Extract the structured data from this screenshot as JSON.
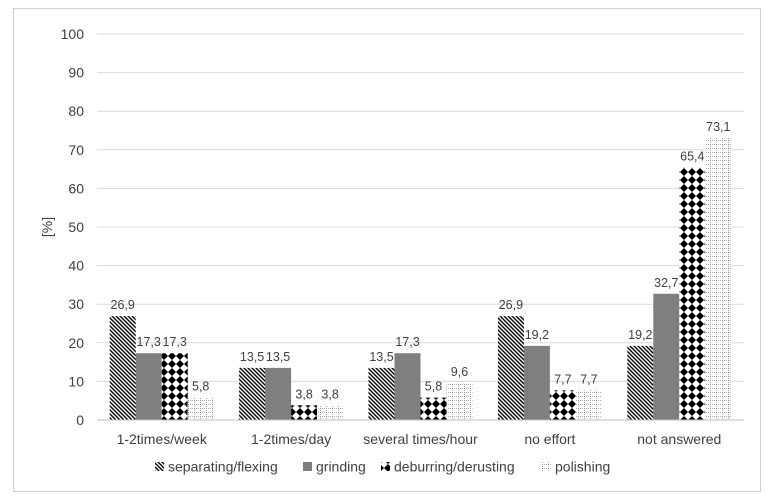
{
  "chart_data": {
    "type": "bar",
    "title": "",
    "xlabel": "",
    "ylabel": "[%]",
    "ylim": [
      0,
      100
    ],
    "yticks": [
      0,
      10,
      20,
      30,
      40,
      50,
      60,
      70,
      80,
      90,
      100
    ],
    "grid": "horizontal",
    "legend_position": "bottom",
    "categories": [
      "1-2times/week",
      "1-2times/day",
      "several times/hour",
      "no effort",
      "not answered"
    ],
    "series": [
      {
        "name": "separating/flexing",
        "values": [
          26.9,
          13.5,
          13.5,
          26.9,
          19.2
        ],
        "labels": [
          "26,9",
          "13,5",
          "13,5",
          "26,9",
          "19,2"
        ],
        "pattern": "diagonal-hatch"
      },
      {
        "name": "grinding",
        "values": [
          17.3,
          13.5,
          17.3,
          19.2,
          32.7
        ],
        "labels": [
          "17,3",
          "13,5",
          "17,3",
          "19,2",
          "32,7"
        ],
        "pattern": "solid-gray"
      },
      {
        "name": "deburring/derusting",
        "values": [
          17.3,
          3.8,
          5.8,
          7.7,
          65.4
        ],
        "labels": [
          "17,3",
          "3,8",
          "5,8",
          "7,7",
          "65,4"
        ],
        "pattern": "diamond-checker"
      },
      {
        "name": "polishing",
        "values": [
          5.8,
          3.8,
          9.6,
          7.7,
          73.1
        ],
        "labels": [
          "5,8",
          "3,8",
          "9,6",
          "7,7",
          "73,1"
        ],
        "pattern": "dotted-grid"
      }
    ],
    "colors": {
      "axis": "#bfbfbf",
      "grid": "#d9d9d9",
      "text": "#404040",
      "grinding": "#7f7f7f",
      "hatch": "#000000"
    }
  }
}
